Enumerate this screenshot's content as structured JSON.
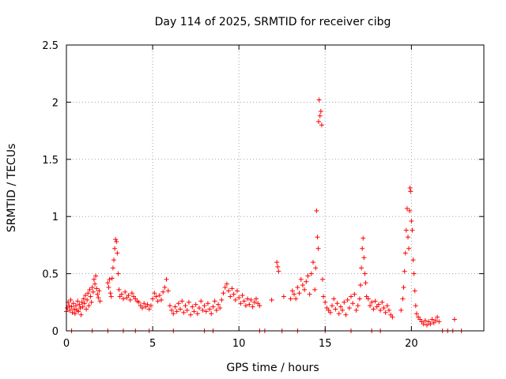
{
  "chart_data": {
    "type": "scatter",
    "title": "Day 114 of 2025, SRMTID for receiver cibg",
    "xlabel": "GPS time / hours",
    "ylabel": "SRMTID / TECUs",
    "xlim": [
      0,
      24.2
    ],
    "ylim": [
      0,
      2.5
    ],
    "grid": true,
    "marker": "+",
    "series_color": "#ff0000",
    "xticks": [
      0,
      5,
      10,
      15,
      20
    ],
    "xtick_labels": [
      "0",
      "5",
      "10",
      "15",
      "20"
    ],
    "yticks": [
      0,
      0.5,
      1,
      1.5,
      2,
      2.5
    ],
    "ytick_labels": [
      "0",
      "0.5",
      "1",
      "1.5",
      "2",
      "2.5"
    ],
    "series": [
      {
        "name": "SRMTID",
        "points": [
          [
            0.0,
            0.17
          ],
          [
            0.05,
            0.2
          ],
          [
            0.1,
            0.25
          ],
          [
            0.15,
            0.22
          ],
          [
            0.2,
            0.18
          ],
          [
            0.25,
            0.27
          ],
          [
            0.3,
            0.21
          ],
          [
            0.35,
            0.16
          ],
          [
            0.4,
            0.24
          ],
          [
            0.45,
            0.19
          ],
          [
            0.5,
            0.15
          ],
          [
            0.55,
            0.22
          ],
          [
            0.6,
            0.18
          ],
          [
            0.65,
            0.26
          ],
          [
            0.7,
            0.17
          ],
          [
            0.75,
            0.23
          ],
          [
            0.8,
            0.2
          ],
          [
            0.85,
            0.14
          ],
          [
            0.9,
            0.25
          ],
          [
            0.95,
            0.21
          ],
          [
            1.0,
            0.28
          ],
          [
            1.05,
            0.24
          ],
          [
            1.1,
            0.31
          ],
          [
            1.15,
            0.19
          ],
          [
            1.2,
            0.27
          ],
          [
            1.25,
            0.33
          ],
          [
            1.3,
            0.22
          ],
          [
            1.35,
            0.36
          ],
          [
            1.4,
            0.3
          ],
          [
            1.45,
            0.25
          ],
          [
            1.5,
            0.38
          ],
          [
            1.55,
            0.34
          ],
          [
            1.6,
            0.45
          ],
          [
            1.65,
            0.41
          ],
          [
            1.7,
            0.48
          ],
          [
            1.75,
            0.37
          ],
          [
            1.8,
            0.32
          ],
          [
            1.85,
            0.29
          ],
          [
            1.9,
            0.35
          ],
          [
            1.95,
            0.26
          ],
          [
            2.4,
            0.42
          ],
          [
            2.45,
            0.38
          ],
          [
            2.5,
            0.45
          ],
          [
            2.55,
            0.33
          ],
          [
            2.6,
            0.3
          ],
          [
            2.65,
            0.46
          ],
          [
            2.7,
            0.55
          ],
          [
            2.75,
            0.62
          ],
          [
            2.8,
            0.72
          ],
          [
            2.85,
            0.8
          ],
          [
            2.9,
            0.78
          ],
          [
            2.95,
            0.68
          ],
          [
            3.0,
            0.5
          ],
          [
            3.05,
            0.36
          ],
          [
            3.1,
            0.3
          ],
          [
            3.2,
            0.32
          ],
          [
            3.3,
            0.28
          ],
          [
            3.4,
            0.34
          ],
          [
            3.5,
            0.29
          ],
          [
            3.6,
            0.31
          ],
          [
            3.7,
            0.27
          ],
          [
            3.8,
            0.33
          ],
          [
            3.9,
            0.3
          ],
          [
            4.0,
            0.28
          ],
          [
            4.1,
            0.26
          ],
          [
            4.2,
            0.25
          ],
          [
            4.3,
            0.22
          ],
          [
            4.4,
            0.2
          ],
          [
            4.5,
            0.24
          ],
          [
            4.6,
            0.21
          ],
          [
            4.7,
            0.23
          ],
          [
            4.8,
            0.19
          ],
          [
            4.9,
            0.22
          ],
          [
            5.0,
            0.28
          ],
          [
            5.1,
            0.33
          ],
          [
            5.2,
            0.3
          ],
          [
            5.3,
            0.26
          ],
          [
            5.4,
            0.31
          ],
          [
            5.5,
            0.27
          ],
          [
            5.6,
            0.34
          ],
          [
            5.7,
            0.38
          ],
          [
            5.8,
            0.45
          ],
          [
            5.9,
            0.35
          ],
          [
            6.0,
            0.22
          ],
          [
            6.1,
            0.18
          ],
          [
            6.2,
            0.15
          ],
          [
            6.3,
            0.21
          ],
          [
            6.4,
            0.17
          ],
          [
            6.5,
            0.24
          ],
          [
            6.6,
            0.19
          ],
          [
            6.7,
            0.26
          ],
          [
            6.8,
            0.16
          ],
          [
            6.9,
            0.22
          ],
          [
            7.0,
            0.18
          ],
          [
            7.1,
            0.25
          ],
          [
            7.2,
            0.14
          ],
          [
            7.3,
            0.21
          ],
          [
            7.4,
            0.17
          ],
          [
            7.5,
            0.23
          ],
          [
            7.6,
            0.15
          ],
          [
            7.7,
            0.2
          ],
          [
            7.8,
            0.26
          ],
          [
            7.9,
            0.18
          ],
          [
            8.0,
            0.22
          ],
          [
            8.1,
            0.17
          ],
          [
            8.2,
            0.24
          ],
          [
            8.3,
            0.19
          ],
          [
            8.4,
            0.15
          ],
          [
            8.5,
            0.21
          ],
          [
            8.6,
            0.26
          ],
          [
            8.7,
            0.18
          ],
          [
            8.8,
            0.23
          ],
          [
            8.9,
            0.2
          ],
          [
            9.0,
            0.27
          ],
          [
            9.1,
            0.33
          ],
          [
            9.2,
            0.38
          ],
          [
            9.3,
            0.41
          ],
          [
            9.4,
            0.35
          ],
          [
            9.5,
            0.3
          ],
          [
            9.6,
            0.37
          ],
          [
            9.7,
            0.32
          ],
          [
            9.8,
            0.27
          ],
          [
            9.9,
            0.35
          ],
          [
            10.0,
            0.29
          ],
          [
            10.1,
            0.24
          ],
          [
            10.2,
            0.31
          ],
          [
            10.3,
            0.26
          ],
          [
            10.4,
            0.22
          ],
          [
            10.5,
            0.28
          ],
          [
            10.6,
            0.23
          ],
          [
            10.7,
            0.27
          ],
          [
            10.8,
            0.21
          ],
          [
            10.9,
            0.25
          ],
          [
            11.0,
            0.28
          ],
          [
            11.1,
            0.24
          ],
          [
            11.2,
            0.22
          ],
          [
            11.9,
            0.27
          ],
          [
            12.2,
            0.6
          ],
          [
            12.25,
            0.56
          ],
          [
            12.3,
            0.52
          ],
          [
            12.6,
            0.3
          ],
          [
            13.0,
            0.28
          ],
          [
            13.1,
            0.35
          ],
          [
            13.2,
            0.32
          ],
          [
            13.3,
            0.28
          ],
          [
            13.4,
            0.38
          ],
          [
            13.5,
            0.33
          ],
          [
            13.6,
            0.45
          ],
          [
            13.7,
            0.4
          ],
          [
            13.8,
            0.36
          ],
          [
            13.9,
            0.43
          ],
          [
            14.0,
            0.48
          ],
          [
            14.1,
            0.32
          ],
          [
            14.2,
            0.5
          ],
          [
            14.3,
            0.6
          ],
          [
            14.4,
            0.36
          ],
          [
            14.45,
            0.55
          ],
          [
            14.5,
            1.05
          ],
          [
            14.55,
            0.82
          ],
          [
            14.6,
            0.72
          ],
          [
            14.62,
            1.83
          ],
          [
            14.65,
            2.02
          ],
          [
            14.7,
            1.88
          ],
          [
            14.75,
            1.92
          ],
          [
            14.8,
            1.8
          ],
          [
            14.85,
            0.45
          ],
          [
            14.9,
            0.3
          ],
          [
            15.0,
            0.25
          ],
          [
            15.1,
            0.2
          ],
          [
            15.2,
            0.18
          ],
          [
            15.3,
            0.16
          ],
          [
            15.4,
            0.22
          ],
          [
            15.5,
            0.28
          ],
          [
            15.6,
            0.19
          ],
          [
            15.7,
            0.24
          ],
          [
            15.8,
            0.15
          ],
          [
            15.9,
            0.21
          ],
          [
            16.0,
            0.18
          ],
          [
            16.1,
            0.25
          ],
          [
            16.2,
            0.14
          ],
          [
            16.3,
            0.27
          ],
          [
            16.4,
            0.2
          ],
          [
            16.5,
            0.3
          ],
          [
            16.6,
            0.24
          ],
          [
            16.7,
            0.32
          ],
          [
            16.8,
            0.18
          ],
          [
            16.9,
            0.22
          ],
          [
            17.0,
            0.28
          ],
          [
            17.05,
            0.4
          ],
          [
            17.1,
            0.55
          ],
          [
            17.15,
            0.72
          ],
          [
            17.2,
            0.81
          ],
          [
            17.25,
            0.64
          ],
          [
            17.3,
            0.5
          ],
          [
            17.35,
            0.42
          ],
          [
            17.4,
            0.3
          ],
          [
            17.5,
            0.28
          ],
          [
            17.6,
            0.22
          ],
          [
            17.7,
            0.25
          ],
          [
            17.8,
            0.19
          ],
          [
            17.9,
            0.26
          ],
          [
            18.0,
            0.21
          ],
          [
            18.1,
            0.23
          ],
          [
            18.2,
            0.18
          ],
          [
            18.3,
            0.25
          ],
          [
            18.4,
            0.2
          ],
          [
            18.5,
            0.16
          ],
          [
            18.6,
            0.22
          ],
          [
            18.7,
            0.18
          ],
          [
            18.8,
            0.14
          ],
          [
            18.9,
            0.12
          ],
          [
            19.4,
            0.18
          ],
          [
            19.5,
            0.28
          ],
          [
            19.55,
            0.38
          ],
          [
            19.6,
            0.52
          ],
          [
            19.65,
            0.68
          ],
          [
            19.7,
            0.88
          ],
          [
            19.75,
            1.07
          ],
          [
            19.8,
            0.82
          ],
          [
            19.85,
            0.72
          ],
          [
            19.9,
            1.05
          ],
          [
            19.92,
            1.25
          ],
          [
            19.95,
            1.22
          ],
          [
            20.0,
            0.96
          ],
          [
            20.05,
            0.88
          ],
          [
            20.1,
            0.62
          ],
          [
            20.15,
            0.5
          ],
          [
            20.2,
            0.35
          ],
          [
            20.25,
            0.22
          ],
          [
            20.3,
            0.15
          ],
          [
            20.4,
            0.12
          ],
          [
            20.5,
            0.1
          ],
          [
            20.6,
            0.08
          ],
          [
            20.7,
            0.06
          ],
          [
            20.8,
            0.09
          ],
          [
            20.9,
            0.05
          ],
          [
            21.0,
            0.08
          ],
          [
            21.1,
            0.06
          ],
          [
            21.2,
            0.1
          ],
          [
            21.3,
            0.07
          ],
          [
            21.4,
            0.09
          ],
          [
            21.5,
            0.12
          ],
          [
            21.6,
            0.08
          ],
          [
            22.5,
            0.1
          ],
          [
            0.3,
            0.0
          ],
          [
            1.5,
            0.0
          ],
          [
            2.4,
            0.0
          ],
          [
            3.3,
            0.0
          ],
          [
            4.0,
            0.0
          ],
          [
            4.8,
            0.0
          ],
          [
            6.2,
            0.0
          ],
          [
            8.0,
            0.0
          ],
          [
            8.5,
            0.0
          ],
          [
            11.2,
            0.0
          ],
          [
            11.5,
            0.0
          ],
          [
            12.5,
            0.0
          ],
          [
            13.4,
            0.0
          ],
          [
            15.0,
            0.0
          ],
          [
            16.5,
            0.0
          ],
          [
            17.7,
            0.0
          ],
          [
            18.2,
            0.0
          ],
          [
            21.8,
            0.0
          ],
          [
            22.1,
            0.0
          ],
          [
            22.4,
            0.0
          ],
          [
            22.9,
            0.0
          ]
        ]
      }
    ]
  }
}
